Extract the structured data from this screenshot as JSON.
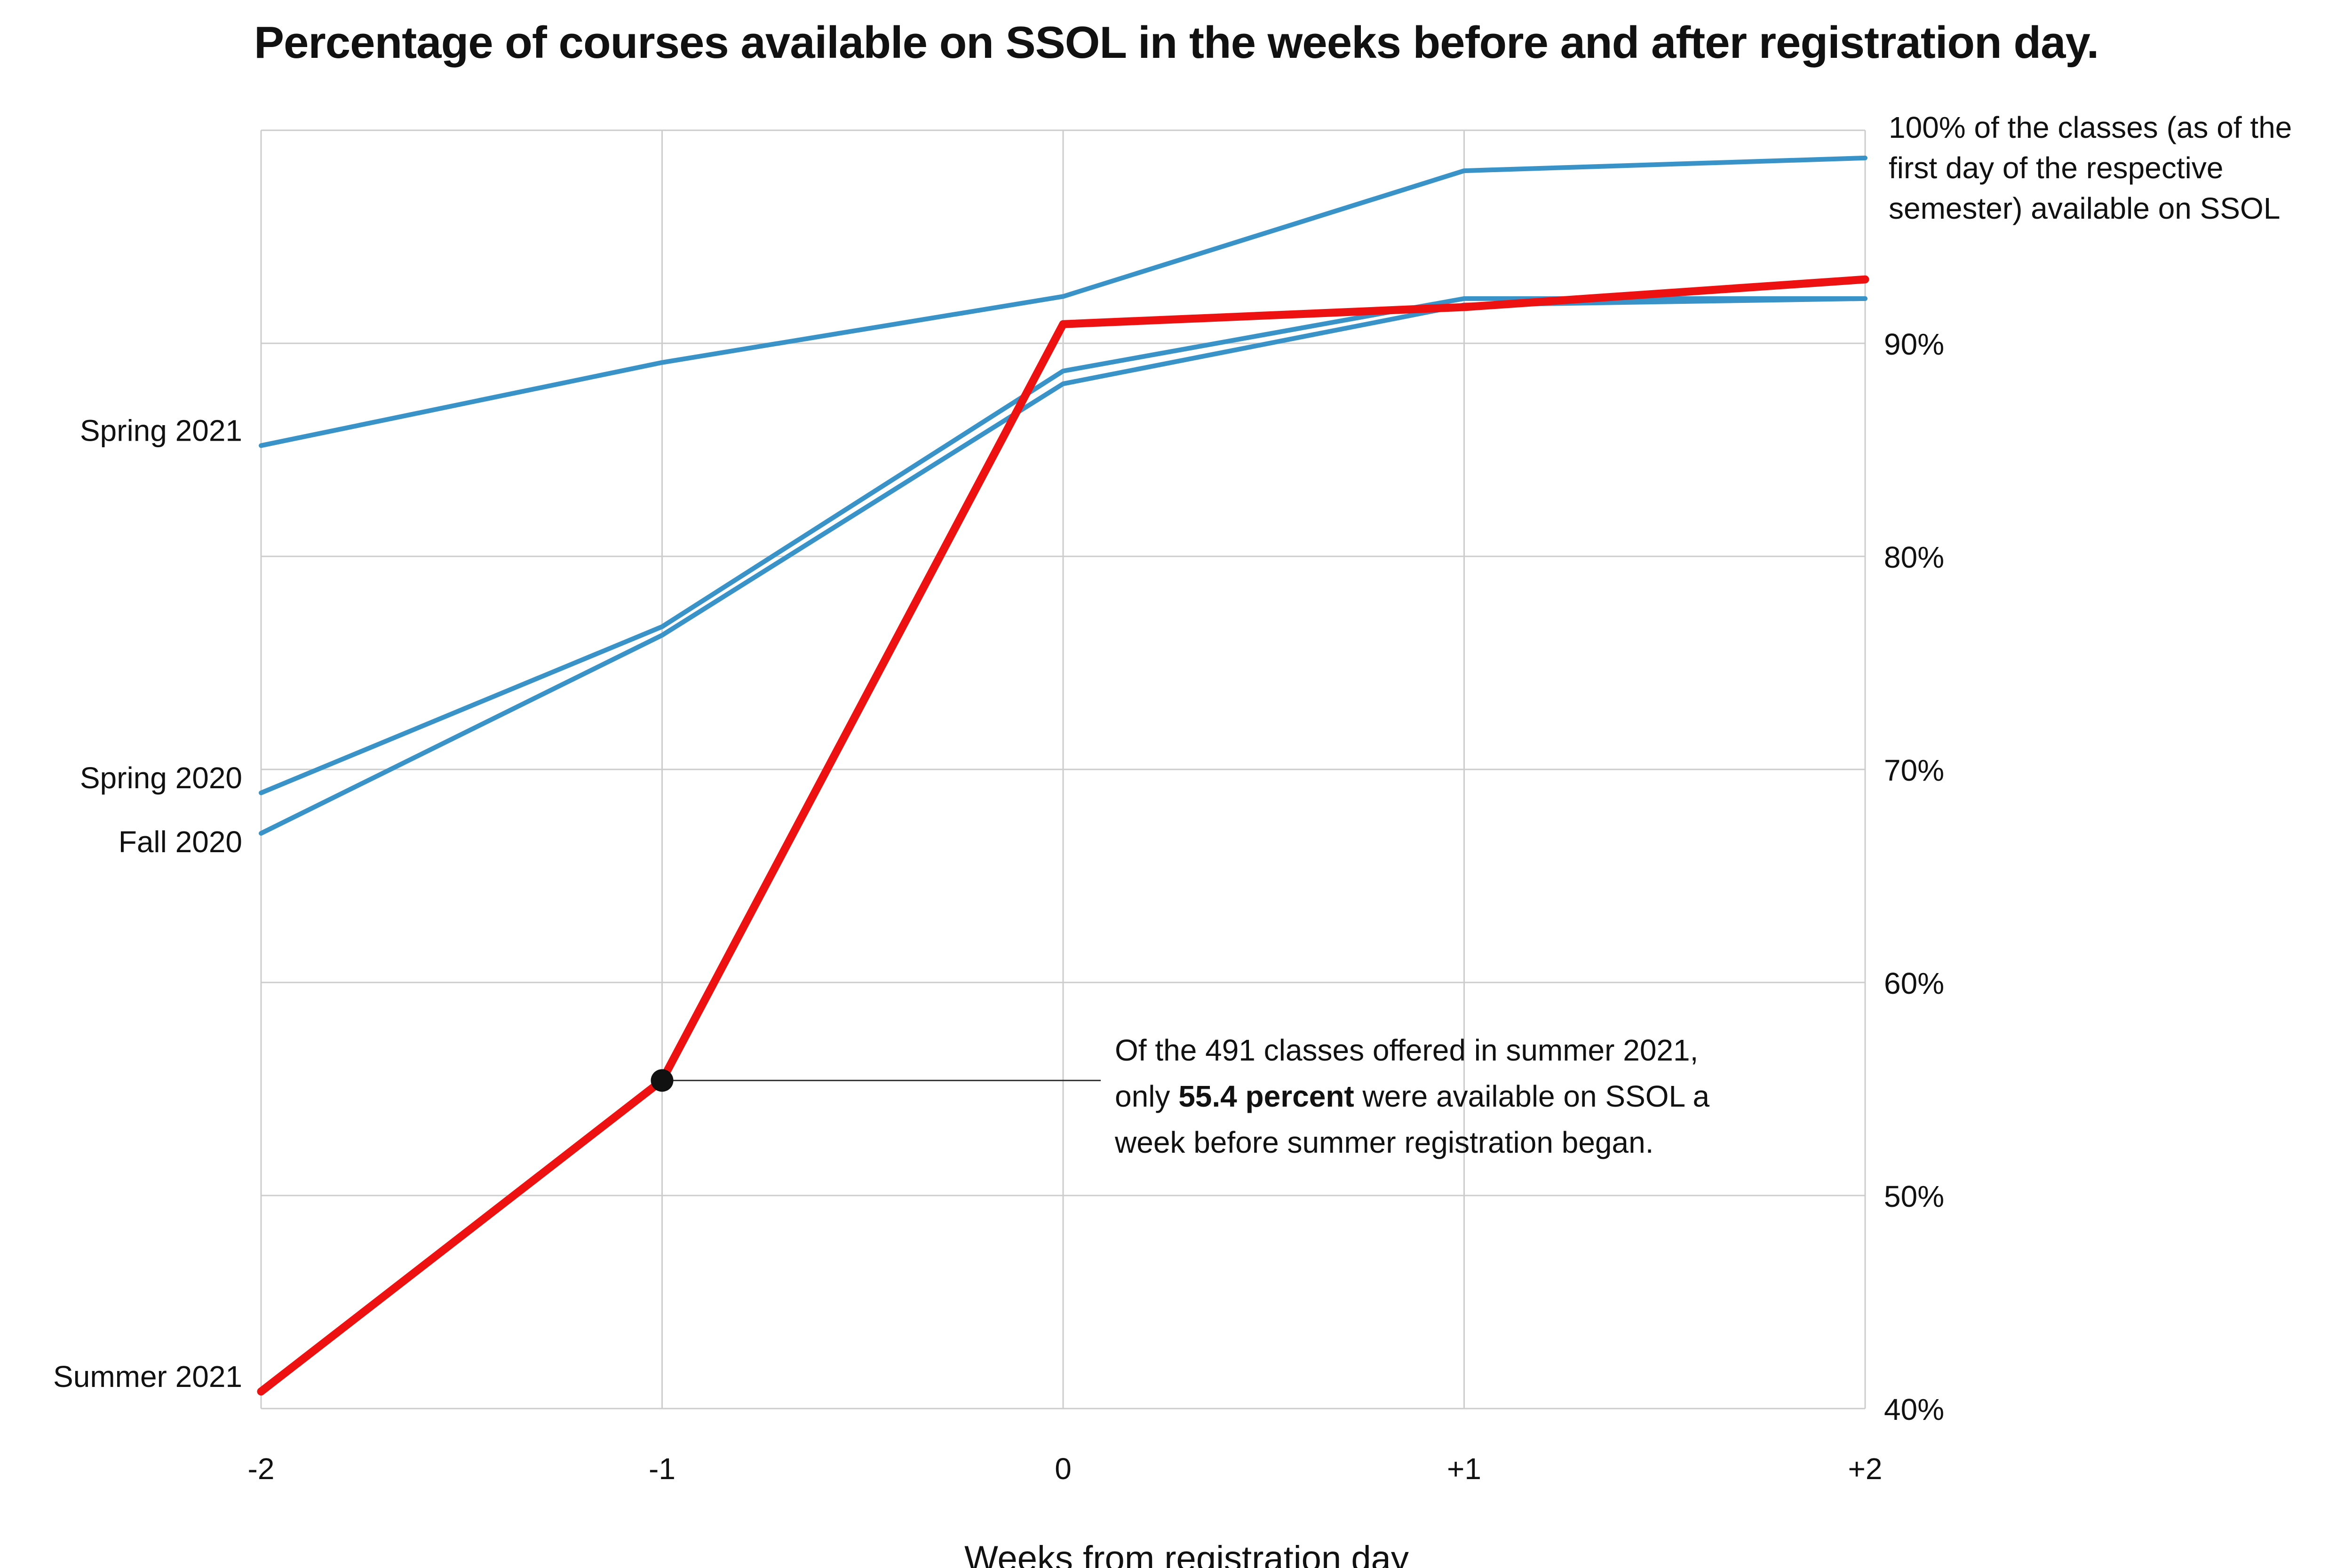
{
  "chart_data": {
    "type": "line",
    "title": "Percentage of courses available on SSOL in the weeks before and after registration day.",
    "xlabel": "Weeks from registration day",
    "ylabel": "",
    "x": [
      -2,
      -1,
      0,
      1,
      2
    ],
    "x_tick_labels": [
      "-2",
      "-1",
      "0",
      "+1",
      "+2"
    ],
    "ylim": [
      40,
      100
    ],
    "y_ticks": [
      40,
      50,
      60,
      70,
      80,
      90
    ],
    "y_tick_labels": [
      "40%",
      "50%",
      "60%",
      "70%",
      "80%",
      "90%"
    ],
    "y_top_label_lines": [
      "100% of the classes (as of the",
      "first day of the respective",
      "semester) available on SSOL"
    ],
    "grid": true,
    "series": [
      {
        "name": "Spring 2021",
        "color": "#3a93c8",
        "values": [
          85.2,
          89.1,
          92.2,
          98.1,
          98.7
        ]
      },
      {
        "name": "Spring 2020",
        "color": "#3a93c8",
        "values": [
          68.9,
          76.7,
          88.7,
          92.1,
          92.1
        ]
      },
      {
        "name": "Fall 2020",
        "color": "#3a93c8",
        "values": [
          67.0,
          76.3,
          88.1,
          91.8,
          92.1
        ]
      },
      {
        "name": "Summer 2021",
        "color": "#ee1111",
        "values": [
          40.8,
          55.4,
          90.9,
          91.7,
          93.0
        ]
      }
    ],
    "annotation": {
      "series": "Summer 2021",
      "x": -1,
      "y": 55.4,
      "lines": [
        {
          "parts": [
            {
              "text": "Of the 491 classes offered in summer 2021,",
              "bold": false
            }
          ]
        },
        {
          "parts": [
            {
              "text": "only ",
              "bold": false
            },
            {
              "text": "55.4 percent",
              "bold": true
            },
            {
              "text": " were available on SSOL a",
              "bold": false
            }
          ]
        },
        {
          "parts": [
            {
              "text": "week before summer registration began.",
              "bold": false
            }
          ]
        }
      ]
    }
  }
}
